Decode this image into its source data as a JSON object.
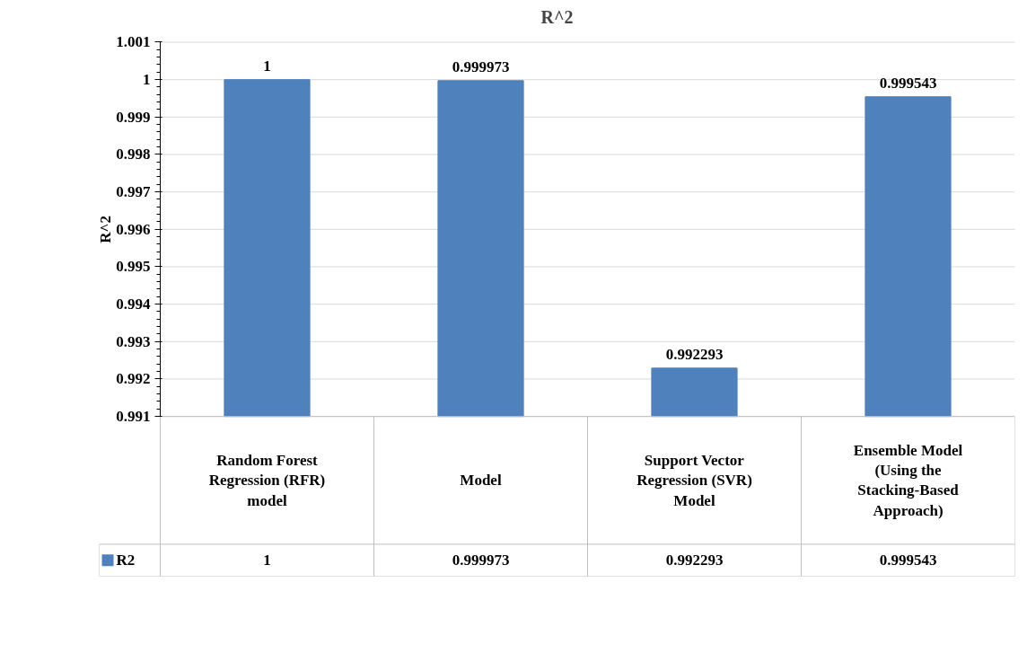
{
  "chart_data": {
    "type": "bar",
    "title": "R^2",
    "ylabel": "R^2",
    "categories": [
      "Random Forest Regression (RFR) model",
      "Model",
      "Support Vector Regression (SVR) Model",
      "Ensemble Model (Using the Stacking-Based Approach)"
    ],
    "series": [
      {
        "name": "R2",
        "color": "#4f81bd",
        "values": [
          1,
          0.999973,
          0.992293,
          0.999543
        ],
        "value_labels": [
          "1",
          "0.999973",
          "0.992293",
          "0.999543"
        ]
      }
    ],
    "ylim": [
      0.991,
      1.001
    ],
    "yticks": [
      0.991,
      0.992,
      0.993,
      0.994,
      0.995,
      0.996,
      0.997,
      0.998,
      0.999,
      1,
      1.001
    ],
    "grid": "y",
    "data_labels": true,
    "legend": "bottom"
  }
}
